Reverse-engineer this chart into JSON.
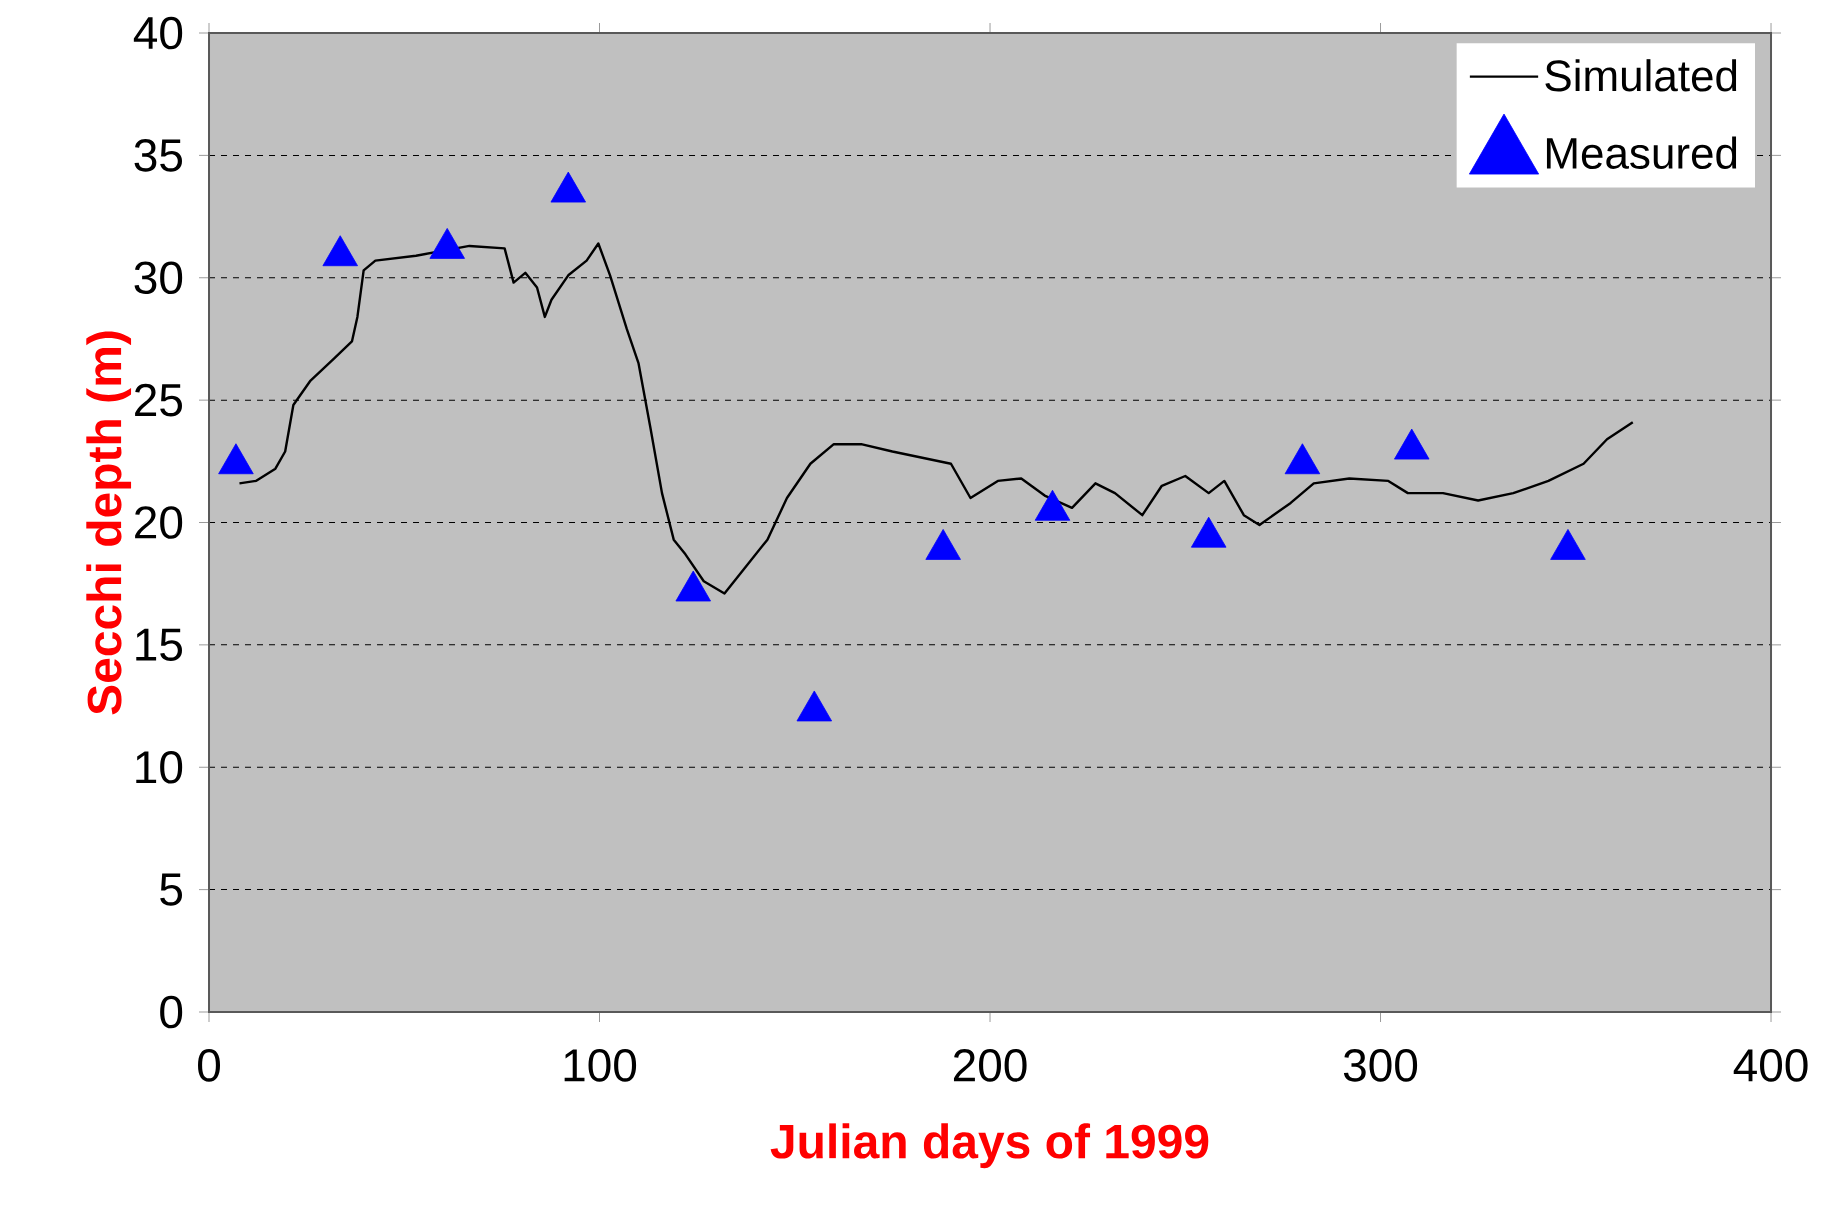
{
  "chart_data": {
    "type": "line",
    "xlabel": "Julian days of 1999",
    "ylabel": "Secchi depth (m)",
    "xlim": [
      0,
      400
    ],
    "xticks": [
      0,
      100,
      200,
      300,
      400
    ],
    "ylim": [
      0,
      40
    ],
    "yticks": [
      0,
      5,
      10,
      15,
      20,
      25,
      30,
      35,
      40
    ],
    "grid": "y",
    "legend": "top right",
    "series": [
      {
        "name": "Simulated",
        "color": "#000000",
        "marker": "none",
        "line_style": "solid",
        "x": [
          7.8,
          12,
          17,
          19.5,
          21.6,
          26,
          32,
          36.6,
          38,
          39.6,
          42.6,
          53,
          66.7,
          75.7,
          78,
          81,
          84,
          86,
          87.7,
          92,
          96.7,
          99.7,
          102.7,
          107,
          110,
          113,
          116,
          119,
          122,
          126.7,
          132,
          137,
          143,
          148,
          154,
          160,
          167,
          175,
          184,
          190,
          195,
          202,
          208,
          214,
          221,
          227,
          232,
          239,
          244,
          250,
          256,
          260,
          265,
          269,
          277,
          282.9,
          292,
          302,
          307,
          316,
          325,
          334,
          343,
          352,
          358,
          364.6
        ],
        "values": [
          21.6,
          21.7,
          22.2,
          22.9,
          24.8,
          25.8,
          26.7,
          27.4,
          28.4,
          30.3,
          30.7,
          30.9,
          31.3,
          31.2,
          29.8,
          30.2,
          29.6,
          28.4,
          29.1,
          30.1,
          30.7,
          31.4,
          30.1,
          27.9,
          26.5,
          23.9,
          21.2,
          19.3,
          18.7,
          17.6,
          17.1,
          18.1,
          19.3,
          21.0,
          22.4,
          23.2,
          23.2,
          22.9,
          22.6,
          22.4,
          21.0,
          21.7,
          21.8,
          21.1,
          20.6,
          21.6,
          21.2,
          20.3,
          21.5,
          21.9,
          21.2,
          21.7,
          20.3,
          19.9,
          20.8,
          21.6,
          21.8,
          21.7,
          21.2,
          21.2,
          20.9,
          21.2,
          21.7,
          22.4,
          23.4,
          24.1
        ]
      },
      {
        "name": "Measured",
        "type": "scatter",
        "color": "#0000ff",
        "marker": "triangle",
        "x": [
          6.9,
          33.6,
          61,
          92,
          124,
          155,
          188,
          216,
          256,
          280,
          308,
          348
        ],
        "values": [
          22.4,
          30.9,
          31.2,
          33.5,
          17.2,
          12.3,
          18.9,
          20.5,
          19.4,
          22.4,
          23.0,
          18.9
        ]
      }
    ]
  }
}
